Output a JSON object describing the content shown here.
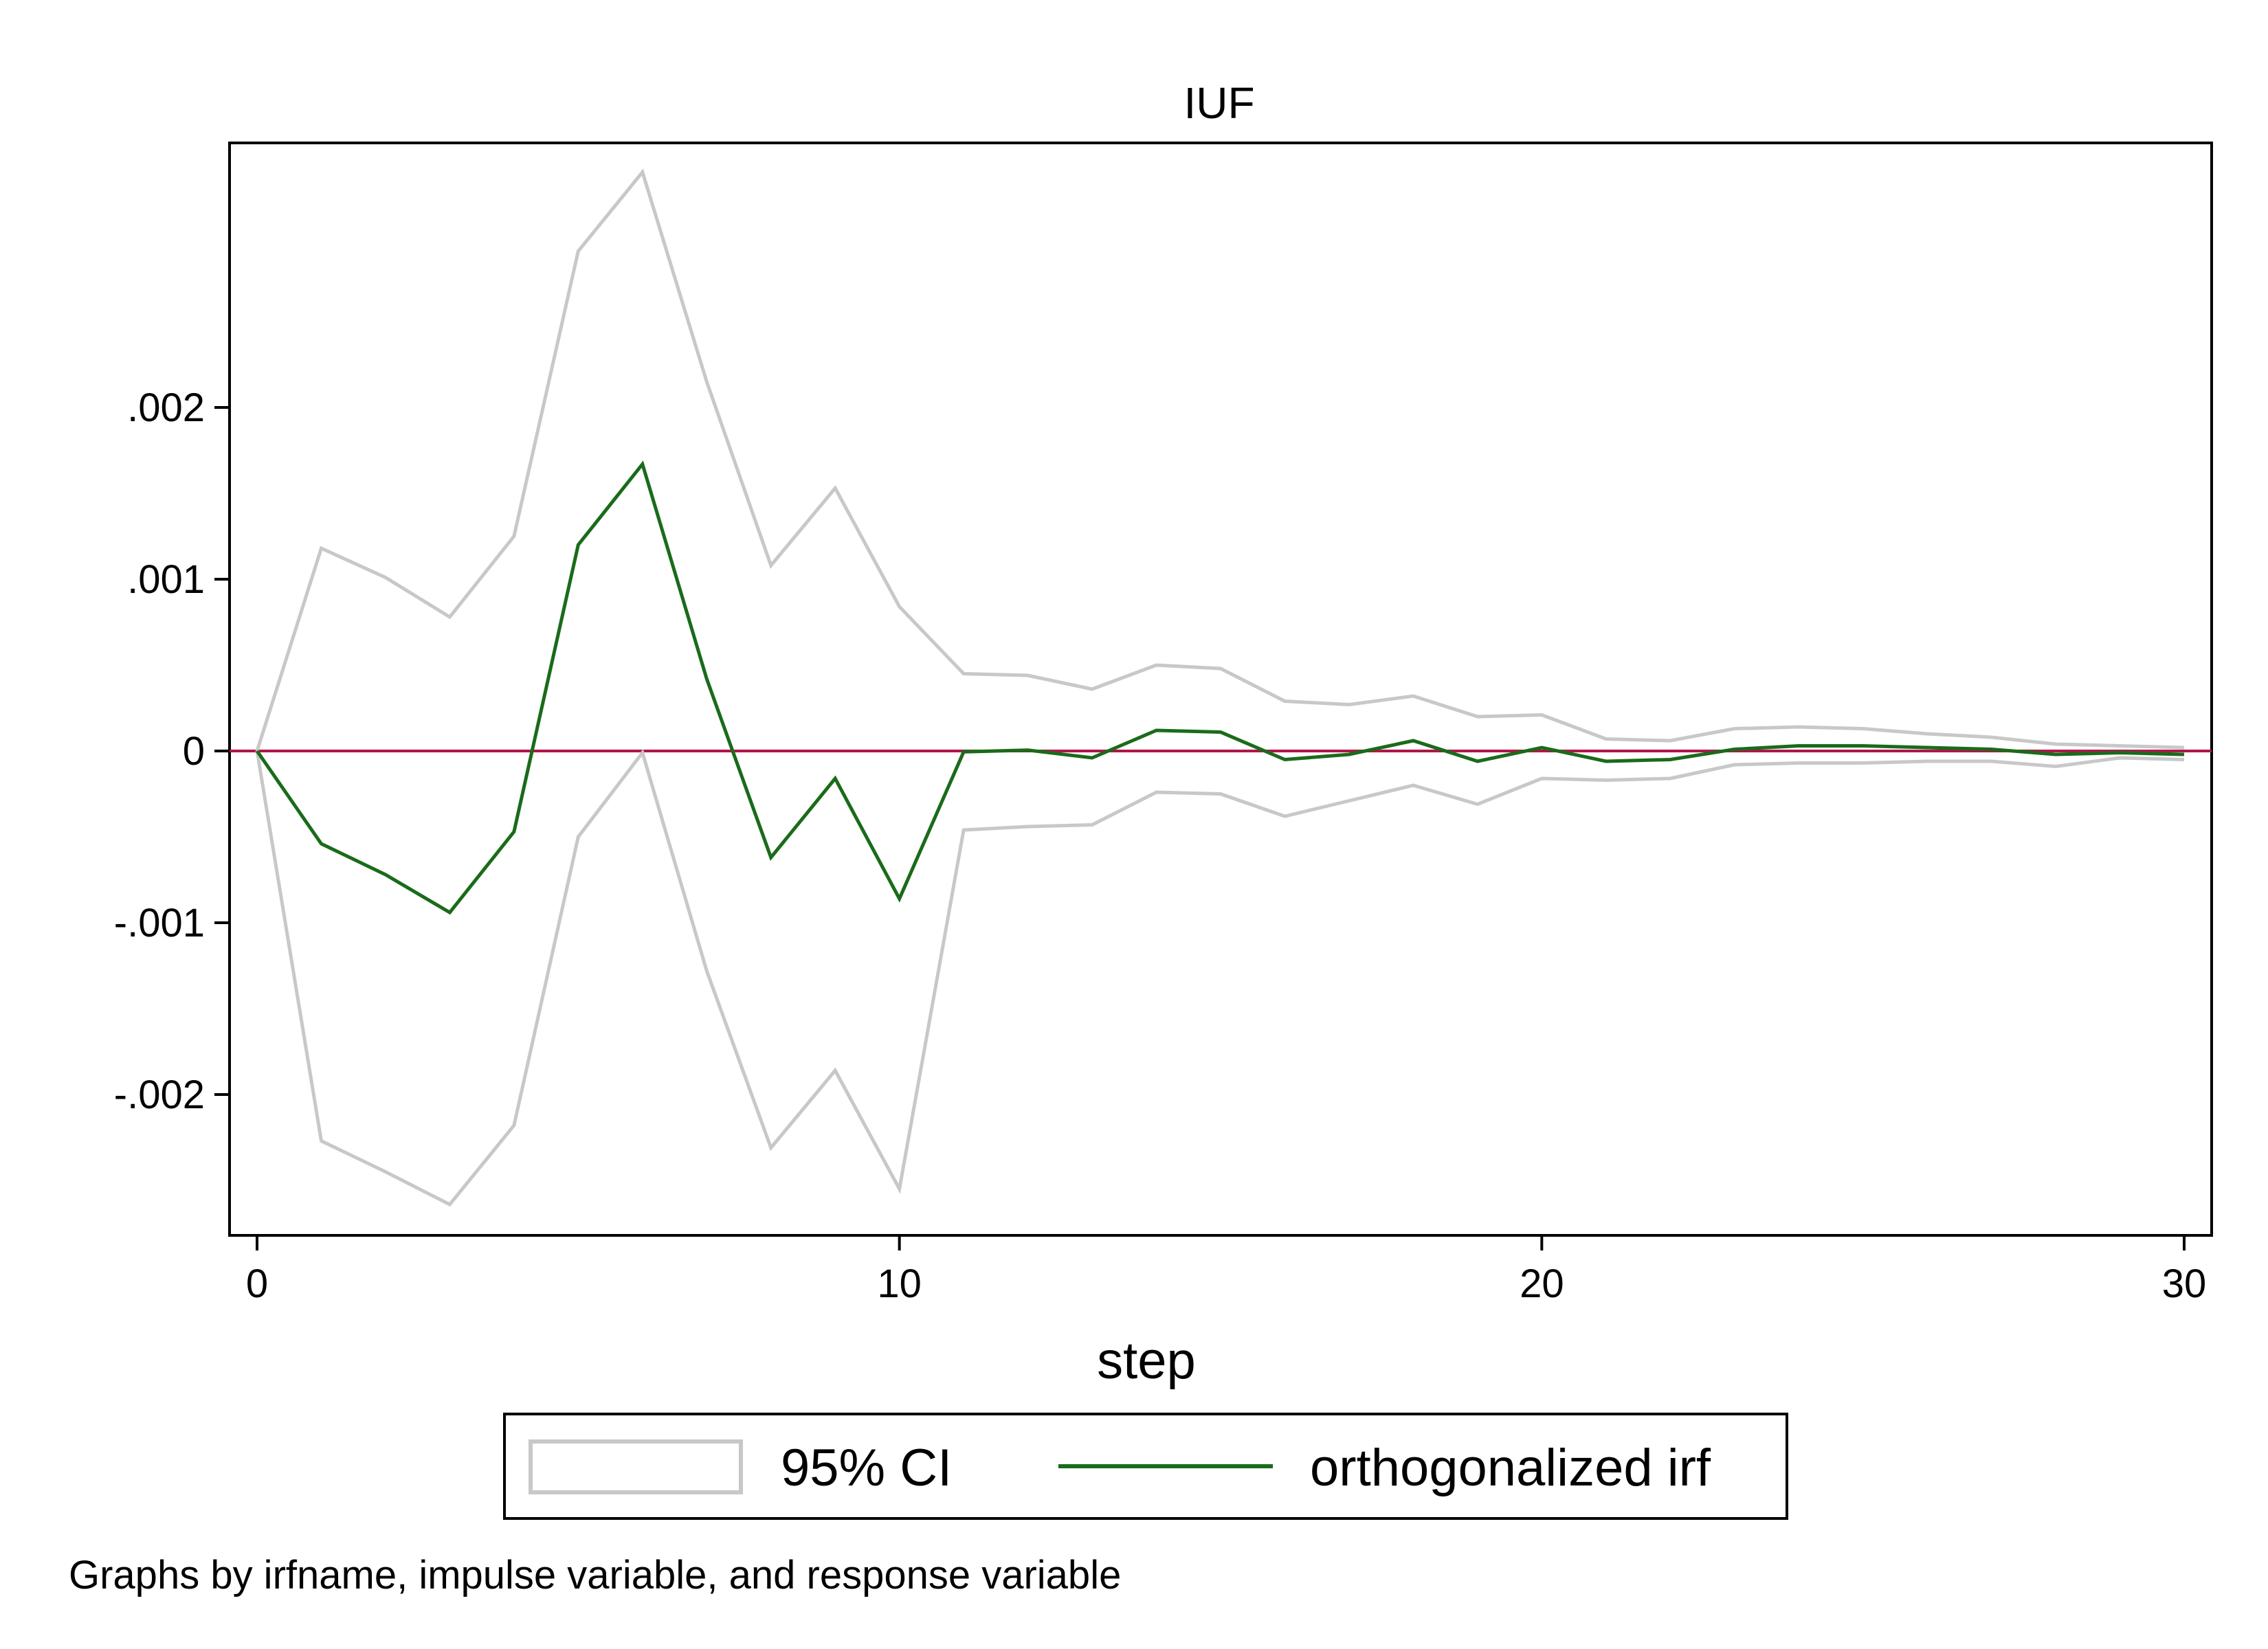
{
  "chart_data": {
    "type": "line",
    "panel_title": "IUF",
    "xlabel": "step",
    "ylabel": "",
    "xlim": [
      0,
      30
    ],
    "ylim": [
      -0.00282,
      0.00354
    ],
    "x_ticks": [
      {
        "value": 0,
        "label": "0"
      },
      {
        "value": 10,
        "label": "10"
      },
      {
        "value": 20,
        "label": "20"
      },
      {
        "value": 30,
        "label": "30"
      }
    ],
    "y_ticks": [
      {
        "value": 0.002,
        "label": ".002"
      },
      {
        "value": 0.001,
        "label": ".001"
      },
      {
        "value": 0,
        "label": "0"
      },
      {
        "value": -0.001,
        "label": "-.001"
      },
      {
        "value": -0.002,
        "label": "-.002"
      }
    ],
    "x": [
      0,
      1,
      2,
      3,
      4,
      5,
      6,
      7,
      8,
      9,
      10,
      11,
      12,
      13,
      14,
      15,
      16,
      17,
      18,
      19,
      20,
      21,
      22,
      23,
      24,
      25,
      26,
      27,
      28,
      29,
      30
    ],
    "series": [
      {
        "name": "orthogonalized irf",
        "color": "#1a6b1a",
        "values": [
          0,
          -0.00054,
          -0.00072,
          -0.00094,
          -0.00047,
          0.0012,
          0.00167,
          0.00042,
          -0.00062,
          -0.00016,
          -0.00086,
          -5e-06,
          5e-06,
          -4e-05,
          0.00012,
          0.00011,
          -5e-05,
          -2e-05,
          6e-05,
          -6e-05,
          2e-05,
          -6e-05,
          -5e-05,
          1e-05,
          3e-05,
          3e-05,
          2e-05,
          1e-05,
          -2e-05,
          -1e-05,
          -2e-05
        ]
      },
      {
        "name": "95% CI upper",
        "color": "#c8c8c8",
        "values": [
          0,
          0.00118,
          0.00101,
          0.00078,
          0.00125,
          0.00291,
          0.00337,
          0.00215,
          0.00108,
          0.00153,
          0.00084,
          0.00045,
          0.00044,
          0.00036,
          0.0005,
          0.00048,
          0.00029,
          0.00027,
          0.00032,
          0.0002,
          0.00021,
          7e-05,
          6e-05,
          0.00013,
          0.00014,
          0.00013,
          0.0001,
          8e-05,
          4e-05,
          3e-05,
          2e-05
        ]
      },
      {
        "name": "95% CI lower",
        "color": "#c8c8c8",
        "values": [
          0,
          -0.00227,
          -0.00245,
          -0.00264,
          -0.00218,
          -0.0005,
          -1e-05,
          -0.00128,
          -0.00231,
          -0.00186,
          -0.00255,
          -0.00046,
          -0.00044,
          -0.00043,
          -0.00024,
          -0.00025,
          -0.00038,
          -0.00029,
          -0.0002,
          -0.00031,
          -0.00016,
          -0.00017,
          -0.00016,
          -8e-05,
          -7e-05,
          -7e-05,
          -6e-05,
          -6e-05,
          -9e-05,
          -4e-05,
          -5e-05
        ]
      }
    ],
    "zero_line_color": "#b0164a",
    "legend": {
      "placement": "bottom",
      "entries": [
        {
          "label": "95% CI",
          "color": "#c8c8c8",
          "style": "area-outline"
        },
        {
          "label": "orthogonalized irf",
          "color": "#1a6b1a",
          "style": "line"
        }
      ]
    },
    "note": "Graphs by irfname, impulse variable, and response variable",
    "grid": false
  }
}
